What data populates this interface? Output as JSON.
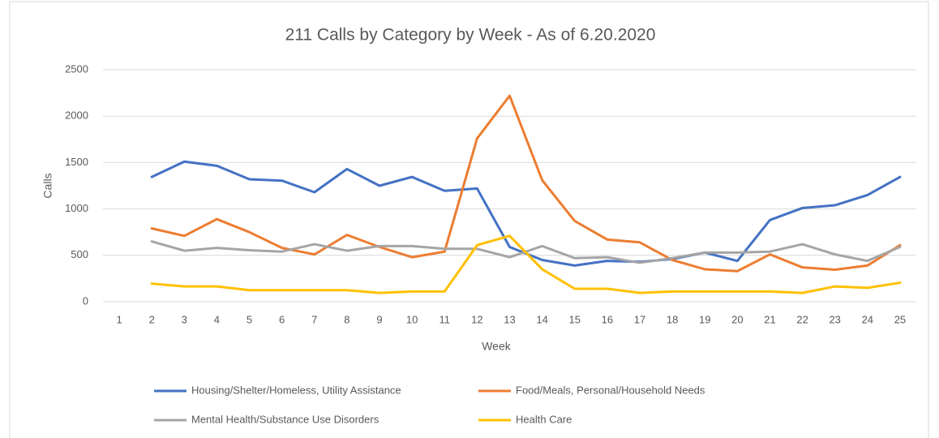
{
  "chart_data": {
    "type": "line",
    "title": "211 Calls by Category by Week - As of 6.20.2020",
    "x_label": "Week",
    "y_label": "Calls",
    "categories": [
      "1",
      "2",
      "3",
      "4",
      "5",
      "6",
      "7",
      "8",
      "9",
      "10",
      "11",
      "12",
      "13",
      "14",
      "15",
      "16",
      "17",
      "18",
      "19",
      "20",
      "21",
      "22",
      "23",
      "24",
      "25"
    ],
    "series": [
      {
        "name": "Housing/Shelter/Homeless, Utility Assistance",
        "color": "#4472c4",
        "values": [
          null,
          1345,
          1510,
          1465,
          1320,
          1305,
          1180,
          1430,
          1250,
          1345,
          1195,
          1220,
          590,
          450,
          390,
          440,
          430,
          460,
          530,
          440,
          880,
          1010,
          1040,
          1150,
          1345
        ]
      },
      {
        "name": "Food/Meals, Personal/Household Needs",
        "color": "#ed7d31",
        "values": [
          null,
          790,
          710,
          890,
          750,
          580,
          510,
          720,
          590,
          480,
          540,
          1760,
          2220,
          1310,
          870,
          670,
          640,
          450,
          350,
          330,
          510,
          370,
          345,
          390,
          610
        ]
      },
      {
        "name": "Mental Health/Substance Use Disorders",
        "color": "#a5a5a5",
        "values": [
          null,
          650,
          550,
          580,
          555,
          540,
          620,
          550,
          600,
          600,
          570,
          570,
          480,
          600,
          470,
          480,
          420,
          470,
          530,
          530,
          540,
          620,
          510,
          440,
          590
        ]
      },
      {
        "name": "Health Care",
        "color": "#ffc000",
        "values": [
          null,
          195,
          165,
          165,
          125,
          125,
          125,
          125,
          95,
          110,
          110,
          610,
          710,
          350,
          140,
          140,
          95,
          110,
          110,
          110,
          110,
          95,
          165,
          150,
          205
        ]
      }
    ],
    "ylim": [
      0,
      2500
    ],
    "yticks": [
      0,
      500,
      1000,
      1500,
      2000,
      2500
    ],
    "grid": true,
    "legend": "bottom"
  }
}
